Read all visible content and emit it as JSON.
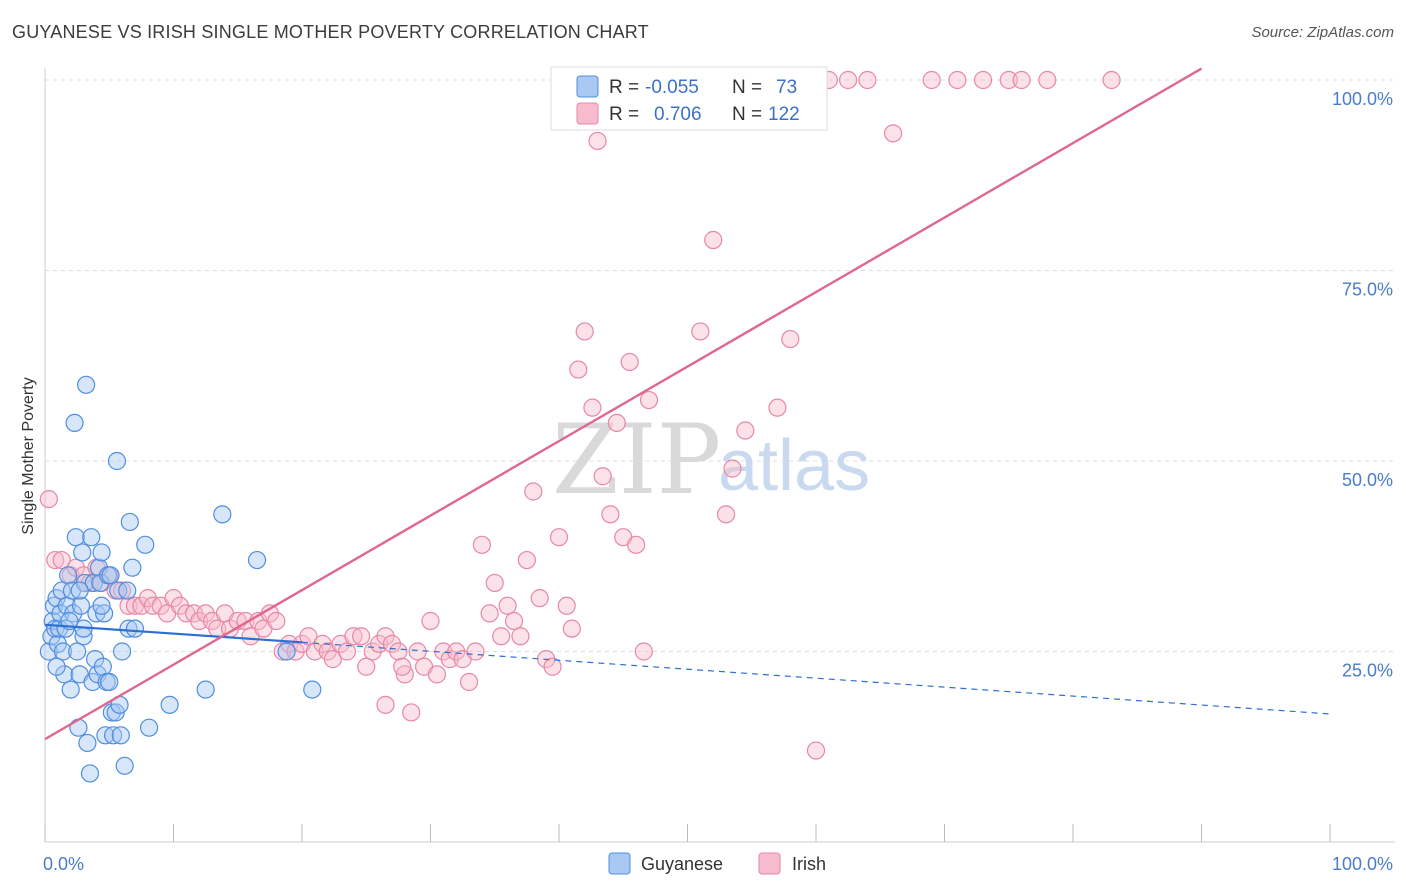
{
  "title": "GUYANESE VS IRISH SINGLE MOTHER POVERTY CORRELATION CHART",
  "source": "Source: ZipAtlas.com",
  "watermark": {
    "zip": "ZIP",
    "atlas": "atlas"
  },
  "legend": {
    "rows": [
      {
        "r_label": "R =",
        "r_value": "-0.055",
        "n_label": "N =",
        "n_value": "73"
      },
      {
        "r_label": "R =",
        "r_value": "0.706",
        "n_label": "N =",
        "n_value": "122"
      }
    ]
  },
  "bottom_legend": [
    "Guyanese",
    "Irish"
  ],
  "colors": {
    "guyanese_fill": "#a9c8f2",
    "guyanese_stroke": "#4f8ee0",
    "guyanese_line": "#2f6fd0",
    "irish_fill": "#f6bccd",
    "irish_stroke": "#e887a6",
    "irish_line": "#e0678f",
    "tick_label": "#4a7cc9",
    "grid": "#dddddd"
  },
  "chart_data": {
    "type": "scatter",
    "title": "GUYANESE VS IRISH SINGLE MOTHER POVERTY CORRELATION CHART",
    "xlabel": "",
    "ylabel": "Single Mother Poverty",
    "xlim": [
      0,
      100
    ],
    "ylim": [
      0,
      102
    ],
    "x_tick_labels": [
      "0.0%",
      "100.0%"
    ],
    "y_ticks": [
      25,
      50,
      75,
      100
    ],
    "y_tick_labels": [
      "25.0%",
      "50.0%",
      "75.0%",
      "100.0%"
    ],
    "grid": true,
    "legend_position": "top-center",
    "series": [
      {
        "name": "Guyanese",
        "r": -0.055,
        "n": 73,
        "trend": {
          "x0": 0,
          "y0": 28.5,
          "x1": 20,
          "y1": 26.2,
          "dashed_to_x": 100,
          "dashed_to_y": 16.8
        },
        "points": [
          [
            0.3,
            25
          ],
          [
            0.5,
            27
          ],
          [
            0.6,
            29
          ],
          [
            0.7,
            31
          ],
          [
            0.8,
            28
          ],
          [
            0.9,
            32
          ],
          [
            1,
            26
          ],
          [
            1.1,
            28
          ],
          [
            1.2,
            30
          ],
          [
            1.3,
            33
          ],
          [
            1.4,
            25
          ],
          [
            1.5,
            22
          ],
          [
            1.6,
            28
          ],
          [
            1.7,
            31
          ],
          [
            1.8,
            35
          ],
          [
            2,
            20
          ],
          [
            2.1,
            33
          ],
          [
            2.2,
            30
          ],
          [
            2.3,
            55
          ],
          [
            2.4,
            40
          ],
          [
            2.5,
            25
          ],
          [
            2.6,
            15
          ],
          [
            2.7,
            22
          ],
          [
            2.8,
            31
          ],
          [
            2.9,
            38
          ],
          [
            3,
            27
          ],
          [
            3.1,
            34
          ],
          [
            3.2,
            60
          ],
          [
            3.3,
            13
          ],
          [
            3.5,
            9
          ],
          [
            3.6,
            40
          ],
          [
            3.7,
            21
          ],
          [
            3.8,
            34
          ],
          [
            3.9,
            24
          ],
          [
            4,
            30
          ],
          [
            4.1,
            22
          ],
          [
            4.2,
            36
          ],
          [
            4.3,
            34
          ],
          [
            4.4,
            38
          ],
          [
            4.5,
            23
          ],
          [
            4.6,
            30
          ],
          [
            4.7,
            14
          ],
          [
            4.8,
            21
          ],
          [
            4.9,
            35
          ],
          [
            5,
            21
          ],
          [
            5.2,
            17
          ],
          [
            5.3,
            14
          ],
          [
            5.5,
            17
          ],
          [
            5.6,
            50
          ],
          [
            5.7,
            33
          ],
          [
            5.8,
            18
          ],
          [
            5.9,
            14
          ],
          [
            6,
            25
          ],
          [
            6.2,
            10
          ],
          [
            6.5,
            28
          ],
          [
            6.6,
            42
          ],
          [
            6.8,
            36
          ],
          [
            7,
            28
          ],
          [
            7.8,
            39
          ],
          [
            8.1,
            15
          ],
          [
            9.7,
            18
          ],
          [
            12.5,
            20
          ],
          [
            13.8,
            43
          ],
          [
            16.5,
            37
          ],
          [
            18.8,
            25
          ],
          [
            20.8,
            20
          ],
          [
            3,
            28
          ],
          [
            1.9,
            29
          ],
          [
            2.7,
            33
          ],
          [
            4.4,
            31
          ],
          [
            5.1,
            35
          ],
          [
            0.9,
            23
          ],
          [
            6.4,
            33
          ]
        ]
      },
      {
        "name": "Irish",
        "r": 0.706,
        "n": 122,
        "trend": {
          "x0": 0,
          "y0": 13.5,
          "x1": 90,
          "y1": 101.5
        },
        "points": [
          [
            0.3,
            45
          ],
          [
            0.8,
            37
          ],
          [
            1.3,
            37
          ],
          [
            2,
            35
          ],
          [
            2.4,
            36
          ],
          [
            3,
            35
          ],
          [
            3.5,
            34
          ],
          [
            4,
            36
          ],
          [
            4.4,
            34
          ],
          [
            5,
            35
          ],
          [
            5.5,
            33
          ],
          [
            6,
            33
          ],
          [
            6.5,
            31
          ],
          [
            7,
            31
          ],
          [
            7.5,
            31
          ],
          [
            8,
            32
          ],
          [
            8.4,
            31
          ],
          [
            9,
            31
          ],
          [
            9.5,
            30
          ],
          [
            10,
            32
          ],
          [
            10.5,
            31
          ],
          [
            11,
            30
          ],
          [
            11.6,
            30
          ],
          [
            12,
            29
          ],
          [
            12.5,
            30
          ],
          [
            13,
            29
          ],
          [
            13.4,
            28
          ],
          [
            14,
            30
          ],
          [
            14.4,
            28
          ],
          [
            15,
            29
          ],
          [
            15.6,
            29
          ],
          [
            16,
            27
          ],
          [
            16.6,
            29
          ],
          [
            17,
            28
          ],
          [
            17.5,
            30
          ],
          [
            18,
            29
          ],
          [
            18.5,
            25
          ],
          [
            19,
            26
          ],
          [
            19.5,
            25
          ],
          [
            20,
            26
          ],
          [
            20.5,
            27
          ],
          [
            21,
            25
          ],
          [
            21.6,
            26
          ],
          [
            22,
            25
          ],
          [
            22.4,
            24
          ],
          [
            23,
            26
          ],
          [
            23.5,
            25
          ],
          [
            24,
            27
          ],
          [
            24.6,
            27
          ],
          [
            25,
            23
          ],
          [
            25.5,
            25
          ],
          [
            26,
            26
          ],
          [
            26.5,
            27
          ],
          [
            27,
            26
          ],
          [
            27.5,
            25
          ],
          [
            28,
            22
          ],
          [
            28.5,
            17
          ],
          [
            29,
            25
          ],
          [
            29.5,
            23
          ],
          [
            30,
            29
          ],
          [
            30.5,
            22
          ],
          [
            31,
            25
          ],
          [
            31.5,
            24
          ],
          [
            32,
            25
          ],
          [
            32.5,
            24
          ],
          [
            33,
            21
          ],
          [
            33.5,
            25
          ],
          [
            34,
            39
          ],
          [
            34.6,
            30
          ],
          [
            35,
            34
          ],
          [
            35.5,
            27
          ],
          [
            36,
            31
          ],
          [
            36.5,
            29
          ],
          [
            37,
            27
          ],
          [
            37.5,
            37
          ],
          [
            38,
            46
          ],
          [
            38.5,
            32
          ],
          [
            39,
            24
          ],
          [
            39.5,
            23
          ],
          [
            40,
            40
          ],
          [
            40.6,
            31
          ],
          [
            41,
            28
          ],
          [
            41.5,
            62
          ],
          [
            42,
            67
          ],
          [
            42.6,
            57
          ],
          [
            43,
            92
          ],
          [
            43.4,
            48
          ],
          [
            44,
            43
          ],
          [
            44.5,
            55
          ],
          [
            45,
            40
          ],
          [
            45.5,
            63
          ],
          [
            46,
            39
          ],
          [
            46.6,
            25
          ],
          [
            47,
            58
          ],
          [
            47.5,
            100
          ],
          [
            48,
            100
          ],
          [
            48.6,
            100
          ],
          [
            50,
            100
          ],
          [
            51,
            67
          ],
          [
            52,
            79
          ],
          [
            53,
            43
          ],
          [
            53.5,
            49
          ],
          [
            54.5,
            54
          ],
          [
            55,
            100
          ],
          [
            56,
            100
          ],
          [
            57,
            57
          ],
          [
            58,
            66
          ],
          [
            59,
            100
          ],
          [
            60,
            12
          ],
          [
            61,
            100
          ],
          [
            62.5,
            100
          ],
          [
            64,
            100
          ],
          [
            66,
            93
          ],
          [
            69,
            100
          ],
          [
            71,
            100
          ],
          [
            73,
            100
          ],
          [
            75,
            100
          ],
          [
            76,
            100
          ],
          [
            78,
            100
          ],
          [
            83,
            100
          ],
          [
            26.5,
            18
          ],
          [
            27.8,
            23
          ]
        ]
      }
    ]
  }
}
